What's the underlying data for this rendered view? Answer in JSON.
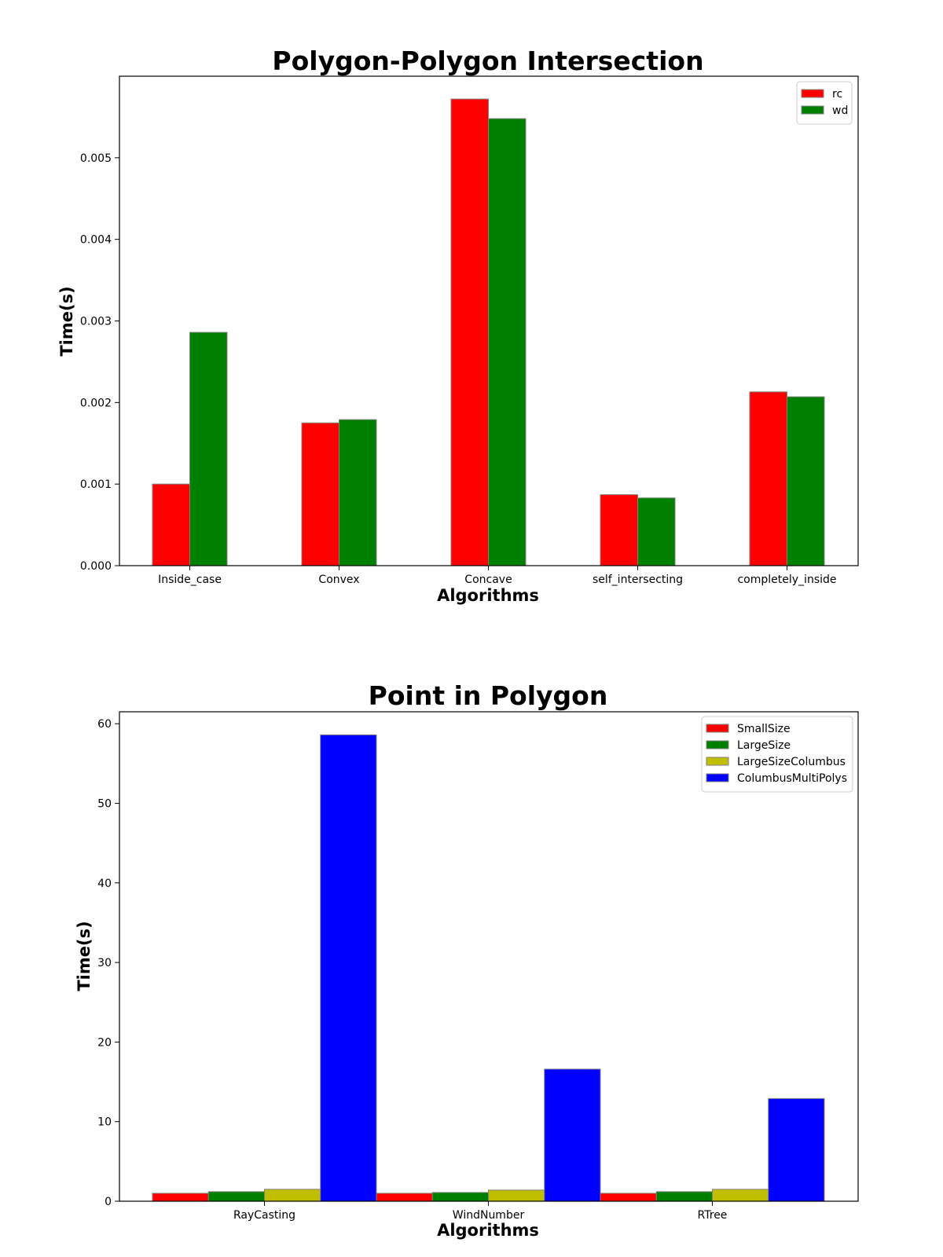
{
  "chart_data": [
    {
      "type": "bar",
      "title": "Polygon-Polygon Intersection",
      "xlabel": "Algorithms",
      "ylabel": "Time(s)",
      "categories": [
        "Inside_case",
        "Convex",
        "Concave",
        "self_intersecting",
        "completely_inside"
      ],
      "series": [
        {
          "name": "rc",
          "color": "#ff0000",
          "values": [
            0.001,
            0.00175,
            0.00572,
            0.00087,
            0.00213
          ]
        },
        {
          "name": "wd",
          "color": "#008000",
          "values": [
            0.00286,
            0.00179,
            0.00548,
            0.00083,
            0.00207
          ]
        }
      ],
      "ylim": [
        0,
        0.006
      ],
      "yticks": [
        0.0,
        0.001,
        0.002,
        0.003,
        0.004,
        0.005
      ],
      "ytick_labels": [
        "0.000",
        "0.001",
        "0.002",
        "0.003",
        "0.004",
        "0.005"
      ],
      "legend": "top-right",
      "grid": false
    },
    {
      "type": "bar",
      "title": "Point in Polygon",
      "xlabel": "Algorithms",
      "ylabel": "Time(s)",
      "categories": [
        "RayCasting",
        "WindNumber",
        "RTree"
      ],
      "series": [
        {
          "name": "SmallSize",
          "color": "#ff0000",
          "values": [
            1.0,
            1.0,
            1.0
          ]
        },
        {
          "name": "LargeSize",
          "color": "#008000",
          "values": [
            1.2,
            1.1,
            1.2
          ]
        },
        {
          "name": "LargeSizeColumbus",
          "color": "#bfbf00",
          "values": [
            1.5,
            1.4,
            1.5
          ]
        },
        {
          "name": "ColumbusMultiPolys",
          "color": "#0000ff",
          "values": [
            58.6,
            16.6,
            12.9
          ]
        }
      ],
      "ylim": [
        0,
        61.5
      ],
      "yticks": [
        0,
        10,
        20,
        30,
        40,
        50,
        60
      ],
      "ytick_labels": [
        "0",
        "10",
        "20",
        "30",
        "40",
        "50",
        "60"
      ],
      "legend": "top-right",
      "grid": false
    }
  ]
}
